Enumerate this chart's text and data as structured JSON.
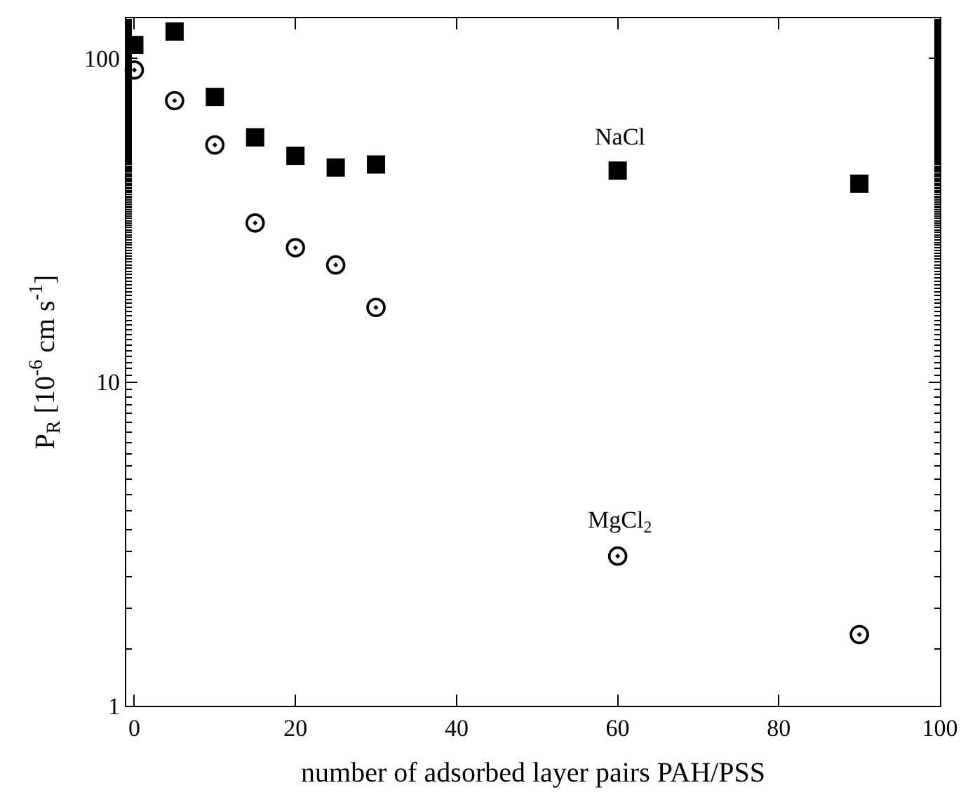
{
  "chart_data": {
    "type": "scatter",
    "xlabel": "number of adsorbed layer pairs PAH/PSS",
    "ylabel": "P$_{R}$ [10$^{-6}$ cm s$^{-1}$]",
    "x": [
      0,
      5,
      10,
      15,
      20,
      25,
      30,
      60,
      90
    ],
    "series": [
      {
        "name": "NaCl",
        "color": "#000000",
        "marker": "square",
        "values": [
          110,
          121,
          76,
          57,
          50,
          46,
          47,
          45,
          41
        ]
      },
      {
        "name": "MgCl$_{2}$",
        "color": "#000000",
        "marker": "circle",
        "values": [
          92,
          74,
          54,
          31,
          26,
          23,
          17,
          2.9,
          1.66
        ]
      }
    ],
    "log": "y",
    "xlim": [
      -1,
      100
    ],
    "xticks": [
      0,
      20,
      40,
      60,
      80,
      100
    ],
    "ylim": [
      1,
      133
    ],
    "yticks": [
      1,
      10,
      100
    ],
    "grid": false,
    "legend": false
  }
}
